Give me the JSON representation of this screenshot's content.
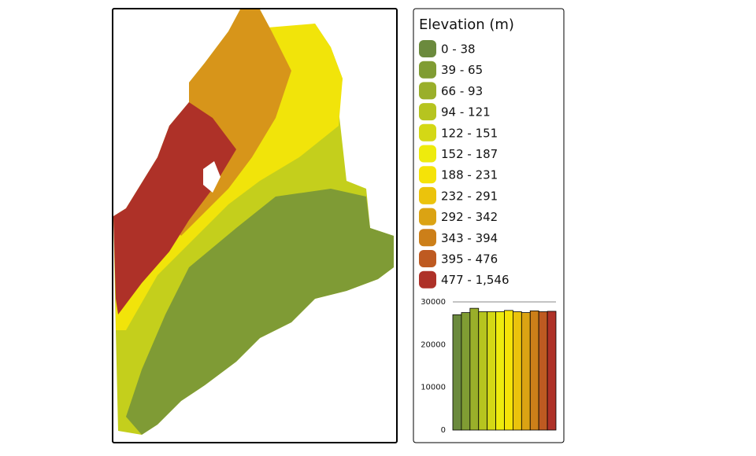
{
  "legend": {
    "title": "Elevation (m)",
    "items": [
      {
        "label": "0 - 38",
        "color": "#6b8a3d"
      },
      {
        "label": "39 - 65",
        "color": "#809c33"
      },
      {
        "label": "66 - 93",
        "color": "#9aaf2a"
      },
      {
        "label": "94 - 121",
        "color": "#b6c41f"
      },
      {
        "label": "122 - 151",
        "color": "#d4d815"
      },
      {
        "label": "152 - 187",
        "color": "#eeeb0d"
      },
      {
        "label": "188 - 231",
        "color": "#f5e308"
      },
      {
        "label": "232 - 291",
        "color": "#ebc30c"
      },
      {
        "label": "292 - 342",
        "color": "#dba313"
      },
      {
        "label": "343 - 394",
        "color": "#cc7f19"
      },
      {
        "label": "395 - 476",
        "color": "#be5a21"
      },
      {
        "label": "477 - 1,546",
        "color": "#ae3128"
      }
    ]
  },
  "chart_data": {
    "type": "bar",
    "values": [
      27000,
      27500,
      28500,
      27700,
      27700,
      27700,
      28000,
      27700,
      27500,
      27900,
      27700,
      27800
    ],
    "ylim": [
      0,
      30000
    ],
    "yticks": [
      0,
      10000,
      20000,
      30000
    ]
  }
}
